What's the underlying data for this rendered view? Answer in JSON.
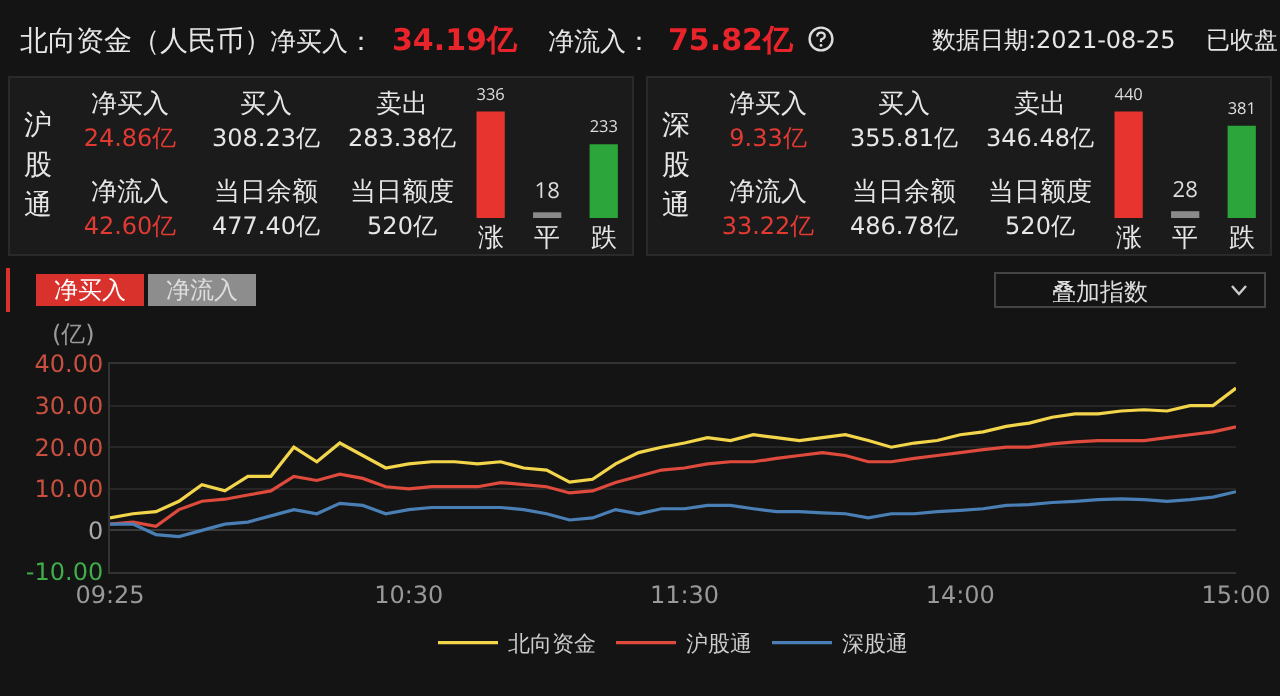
{
  "chart_data": [
    {
      "type": "other",
      "title": "北向资金（人民币）",
      "annotations": [
        "净买入：",
        "34.19亿",
        "净流入：",
        "75.82亿",
        "数据日期:2021-08-25",
        "已收盘"
      ]
    },
    {
      "type": "bar",
      "categories": [
        "涨",
        "平",
        "跌"
      ],
      "values": [
        336,
        18,
        233
      ],
      "colors": [
        "#e8342f",
        "#8a8a8a",
        "#2ca53a"
      ],
      "data_labels": true,
      "annotations": [
        "沪股通",
        "净买入",
        "24.86亿",
        "买入",
        "308.23亿",
        "卖出",
        "283.38亿",
        "净流入",
        "42.60亿",
        "当日余额",
        "477.40亿",
        "当日额度",
        "520亿"
      ]
    },
    {
      "type": "bar",
      "categories": [
        "涨",
        "平",
        "跌"
      ],
      "values": [
        440,
        28,
        381
      ],
      "colors": [
        "#e8342f",
        "#8a8a8a",
        "#2ca53a"
      ],
      "data_labels": true,
      "annotations": [
        "深股通",
        "净买入",
        "9.33亿",
        "买入",
        "355.81亿",
        "卖出",
        "346.48亿",
        "净流入",
        "33.22亿",
        "当日余额",
        "486.78亿",
        "当日额度",
        "520亿"
      ]
    },
    {
      "type": "line",
      "ylabel": "(亿)",
      "categories": [
        "09:25",
        null,
        null,
        null,
        null,
        null,
        null,
        null,
        null,
        null,
        null,
        null,
        null,
        "10:30",
        null,
        null,
        null,
        null,
        null,
        null,
        null,
        null,
        null,
        null,
        null,
        "11:30",
        null,
        null,
        null,
        null,
        null,
        null,
        null,
        null,
        null,
        null,
        null,
        "14:00",
        null,
        null,
        null,
        null,
        null,
        null,
        null,
        null,
        null,
        null,
        null,
        "15:00"
      ],
      "ylim": [
        -10,
        40
      ],
      "yticks": [
        {
          "value": 40,
          "label": "40.00"
        },
        {
          "value": 30,
          "label": "30.00"
        },
        {
          "value": 20,
          "label": "20.00"
        },
        {
          "value": 10,
          "label": "10.00"
        },
        0,
        {
          "value": -10,
          "label": "-10.00"
        }
      ],
      "grid": "y",
      "legend": "bottom",
      "annotations": [
        "净买入",
        "净流入",
        "叠加指数"
      ],
      "series": [
        {
          "name": "北向资金",
          "color": "#f2d54a",
          "values": [
            3,
            4,
            4.5,
            7,
            11,
            9.5,
            13,
            13,
            20,
            16.5,
            21,
            18,
            15,
            16,
            16.5,
            16.5,
            16,
            16.5,
            15,
            14.5,
            11.6,
            12.3,
            16,
            18.7,
            20,
            21,
            22.3,
            21.6,
            23,
            22.3,
            21.6,
            22.3,
            23,
            21.6,
            20,
            21,
            21.6,
            23,
            23.7,
            25,
            25.8,
            27.2,
            28,
            28,
            28.7,
            29,
            28.7,
            30,
            30,
            34.2
          ]
        },
        {
          "name": "沪股通",
          "color": "#de4a3c",
          "values": [
            1.5,
            2,
            1,
            5,
            7,
            7.5,
            8.5,
            9.5,
            13,
            12,
            13.5,
            12.5,
            10.5,
            10,
            10.5,
            10.5,
            10.5,
            11.5,
            11,
            10.5,
            9,
            9.5,
            11.5,
            13,
            14.5,
            15,
            16,
            16.5,
            16.5,
            17.3,
            18,
            18.7,
            18,
            16.5,
            16.5,
            17.3,
            18,
            18.7,
            19.4,
            20,
            20,
            20.8,
            21.3,
            21.6,
            21.6,
            21.6,
            22.3,
            23,
            23.7,
            24.9
          ]
        },
        {
          "name": "深股通",
          "color": "#4a7fb5",
          "values": [
            1.5,
            1.5,
            -1,
            -1.5,
            0,
            1.5,
            2,
            3.5,
            5,
            4,
            6.5,
            6,
            4,
            5,
            5.5,
            5.5,
            5.5,
            5.5,
            5,
            4,
            2.5,
            3,
            5,
            4,
            5.2,
            5.2,
            6,
            6,
            5.2,
            4.5,
            4.5,
            4.2,
            4,
            3,
            4,
            4,
            4.5,
            4.8,
            5.2,
            6,
            6.2,
            6.7,
            7,
            7.4,
            7.6,
            7.4,
            7,
            7.4,
            8,
            9.3
          ]
        }
      ]
    }
  ]
}
